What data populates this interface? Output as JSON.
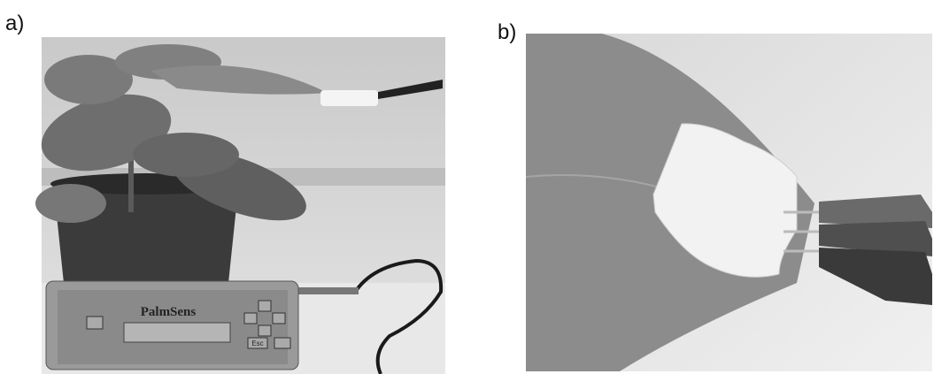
{
  "panels": [
    {
      "label": "a)",
      "device_label": "PalmSens",
      "button_label": "Esc"
    },
    {
      "label": "b)"
    }
  ]
}
